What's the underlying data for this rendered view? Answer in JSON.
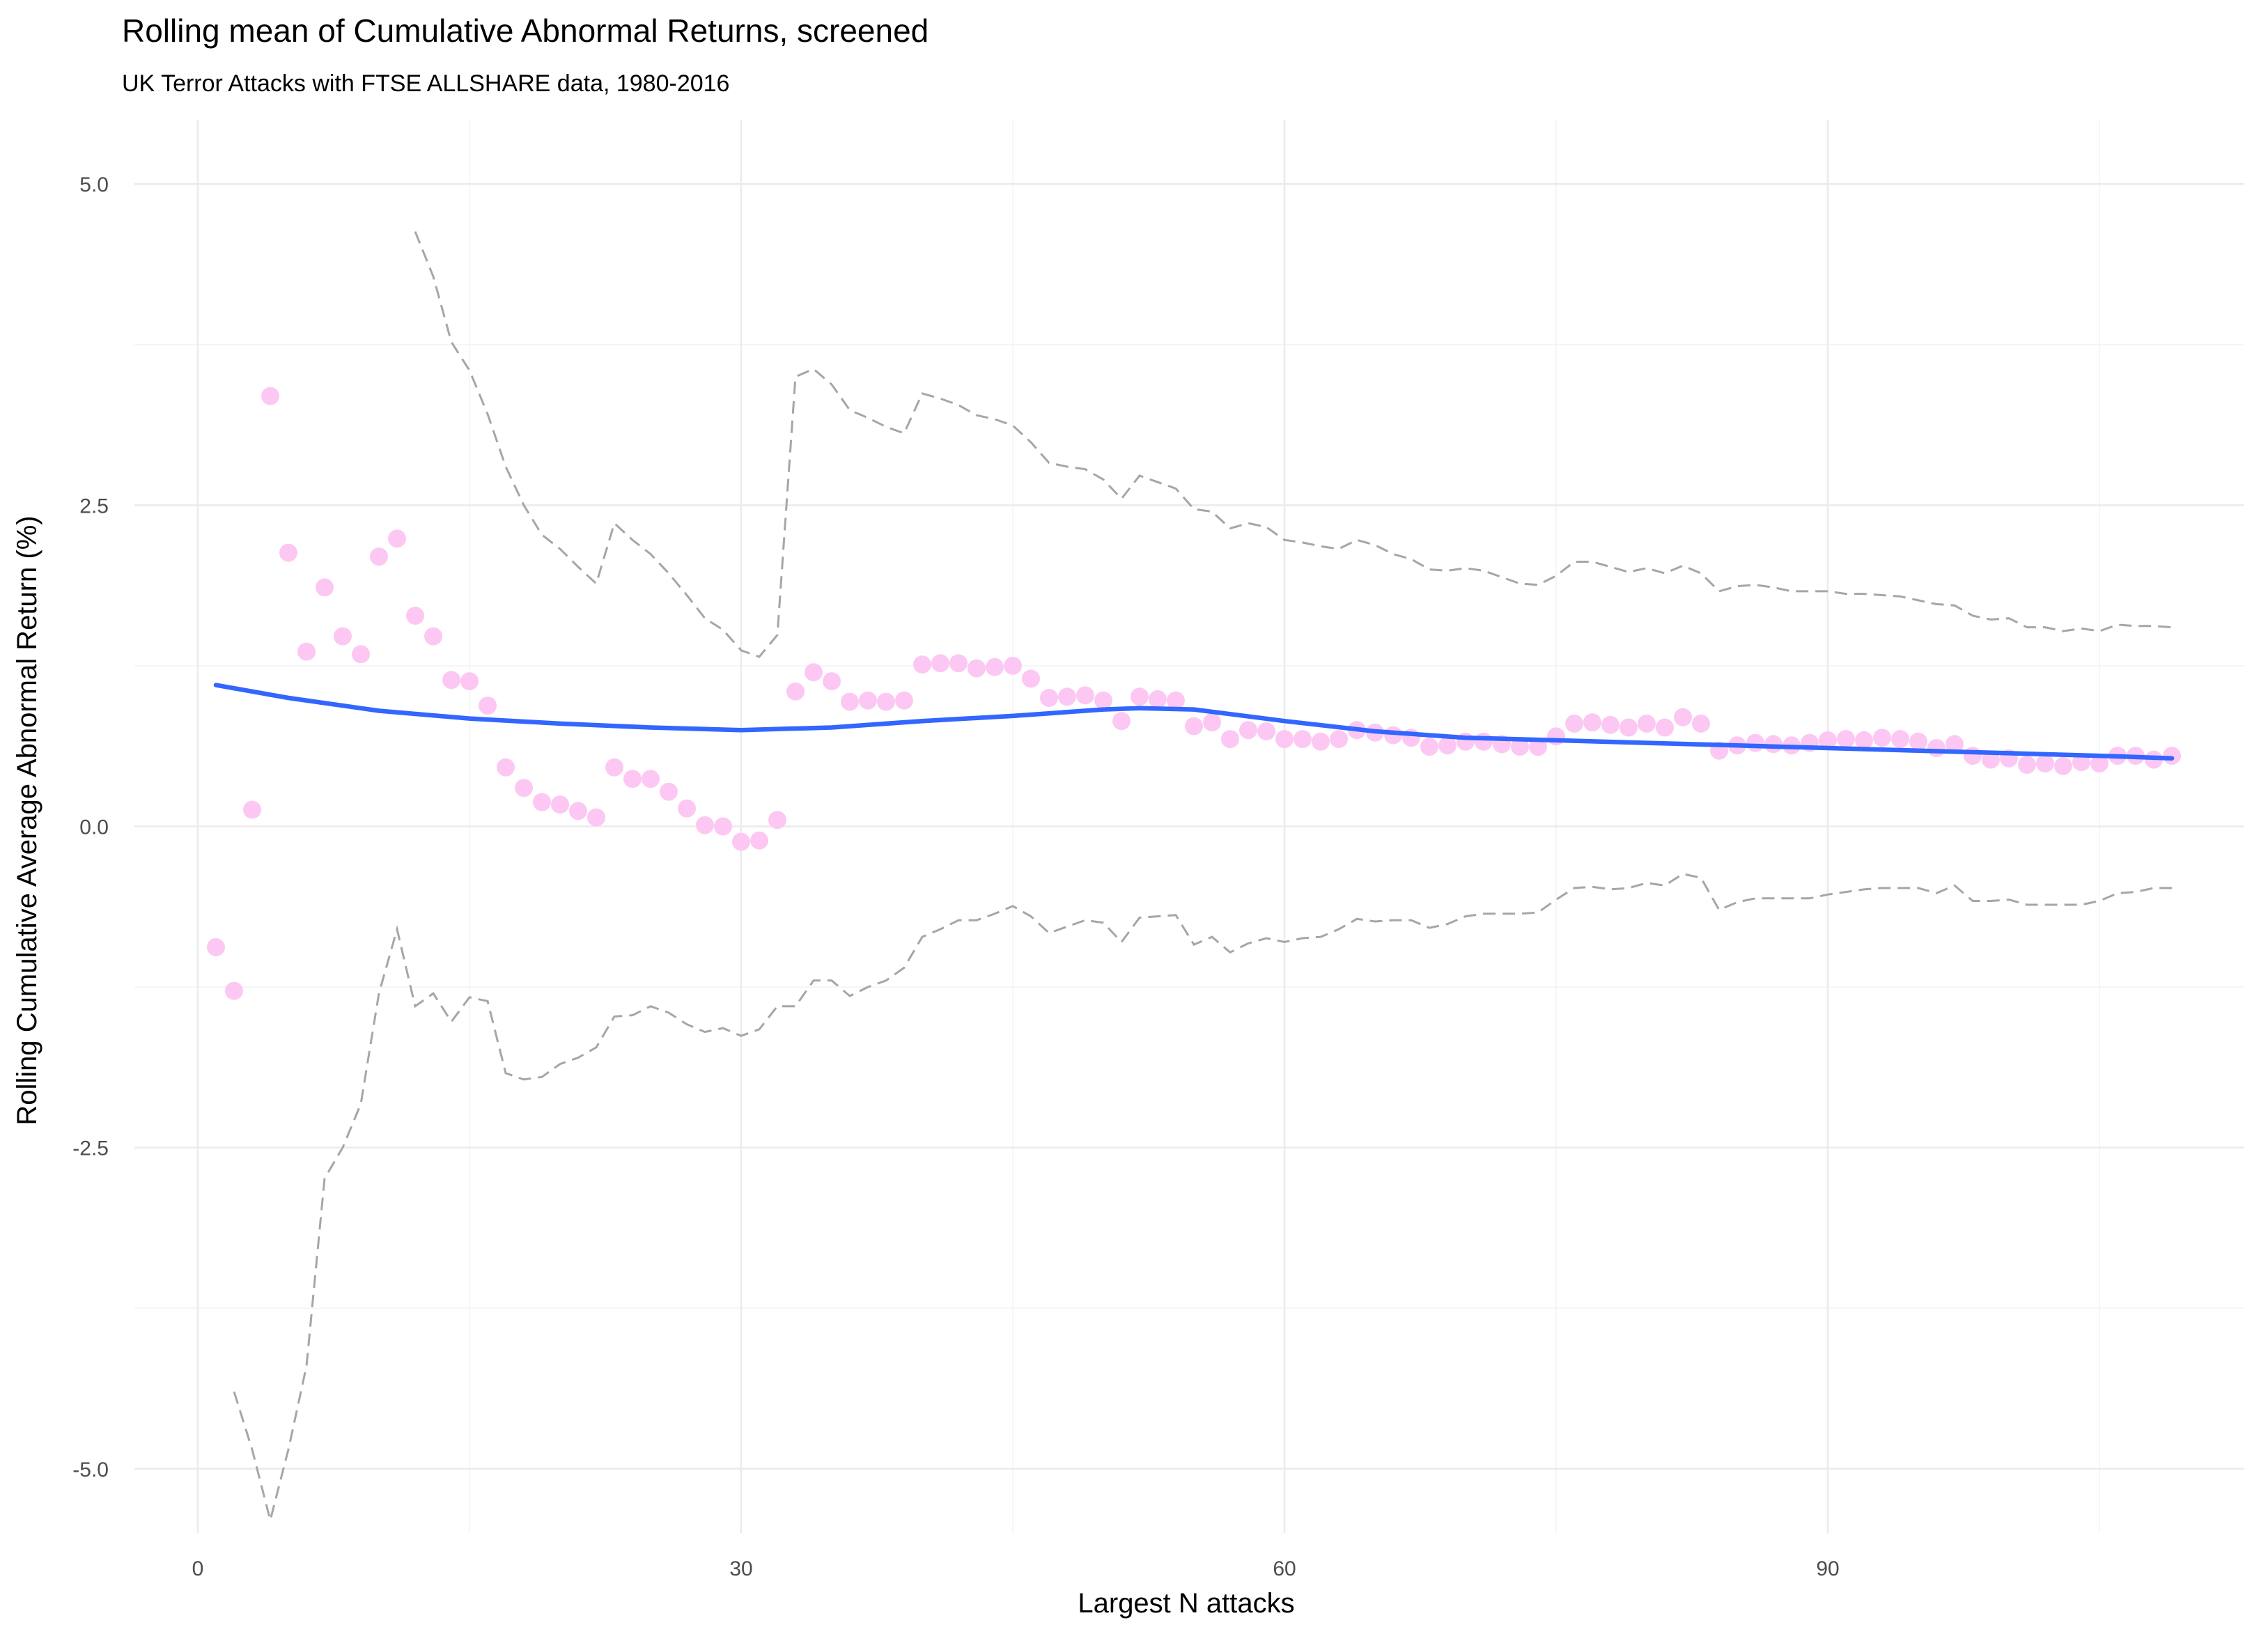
{
  "chart_data": {
    "type": "scatter",
    "title": "Rolling mean of Cumulative Abnormal Returns, screened",
    "subtitle": "UK Terror Attacks with FTSE ALLSHARE data, 1980-2016",
    "xlabel": "Largest N attacks",
    "ylabel": "Rolling Cumulative Average Abnormal Return (%)",
    "xlim": [
      -3.5,
      113
    ],
    "ylim": [
      -5.5,
      5.5
    ],
    "x_ticks": [
      0,
      30,
      60,
      90
    ],
    "x_tick_labels": [
      "0",
      "30",
      "60",
      "90"
    ],
    "y_ticks": [
      5.0,
      2.5,
      0.0,
      -2.5,
      -5.0
    ],
    "y_tick_labels": [
      "5.0",
      "2.5",
      "0.0",
      "-2.5",
      "-5.0"
    ],
    "grid": true,
    "legend": "none",
    "colors": {
      "points": "#fcc8f3",
      "smooth": "#3366ff",
      "bounds": "#a6a6a6"
    },
    "series": [
      {
        "kind": "points",
        "x": [
          1,
          2,
          3,
          4,
          5,
          6,
          7,
          8,
          9,
          10,
          11,
          12,
          13,
          14,
          15,
          16,
          17,
          18,
          19,
          20,
          21,
          22,
          23,
          24,
          25,
          26,
          27,
          28,
          29,
          30,
          31,
          32,
          33,
          34,
          35,
          36,
          37,
          38,
          39,
          40,
          41,
          42,
          43,
          44,
          45,
          46,
          47,
          48,
          49,
          50,
          51,
          52,
          53,
          54,
          55,
          56,
          57,
          58,
          59,
          60,
          61,
          62,
          63,
          64,
          65,
          66,
          67,
          68,
          69,
          70,
          71,
          72,
          73,
          74,
          75,
          76,
          77,
          78,
          79,
          80,
          81,
          82,
          83,
          84,
          85,
          86,
          87,
          88,
          89,
          90,
          91,
          92,
          93,
          94,
          95,
          96,
          97,
          98,
          99,
          100,
          101,
          102,
          103,
          104,
          105,
          106,
          107,
          108,
          109
        ],
        "y": [
          -0.94,
          -1.28,
          0.13,
          3.35,
          2.13,
          1.36,
          1.86,
          1.48,
          1.34,
          2.1,
          2.24,
          1.64,
          1.48,
          1.14,
          1.13,
          0.94,
          0.46,
          0.3,
          0.19,
          0.17,
          0.12,
          0.07,
          0.46,
          0.37,
          0.37,
          0.27,
          0.14,
          0.01,
          0.0,
          -0.12,
          -0.11,
          0.05,
          1.05,
          1.2,
          1.13,
          0.97,
          0.98,
          0.97,
          0.98,
          1.26,
          1.27,
          1.27,
          1.23,
          1.24,
          1.25,
          1.15,
          1.0,
          1.01,
          1.02,
          0.98,
          0.82,
          1.01,
          0.99,
          0.98,
          0.78,
          0.81,
          0.68,
          0.75,
          0.74,
          0.68,
          0.68,
          0.66,
          0.68,
          0.75,
          0.73,
          0.71,
          0.69,
          0.62,
          0.63,
          0.66,
          0.66,
          0.64,
          0.62,
          0.62,
          0.7,
          0.8,
          0.81,
          0.79,
          0.77,
          0.8,
          0.77,
          0.85,
          0.8,
          0.59,
          0.63,
          0.65,
          0.64,
          0.63,
          0.65,
          0.67,
          0.68,
          0.67,
          0.69,
          0.68,
          0.66,
          0.61,
          0.64,
          0.55,
          0.52,
          0.53,
          0.48,
          0.49,
          0.47,
          0.5,
          0.49,
          0.55,
          0.55,
          0.52,
          0.55
        ]
      },
      {
        "kind": "smooth",
        "x": [
          1,
          5,
          10,
          15,
          20,
          25,
          30,
          35,
          40,
          45,
          50,
          52,
          55,
          60,
          65,
          70,
          75,
          80,
          85,
          90,
          95,
          100,
          105,
          109
        ],
        "y": [
          1.1,
          1.0,
          0.9,
          0.84,
          0.8,
          0.77,
          0.75,
          0.77,
          0.82,
          0.86,
          0.91,
          0.92,
          0.91,
          0.82,
          0.74,
          0.69,
          0.67,
          0.65,
          0.63,
          0.61,
          0.59,
          0.57,
          0.55,
          0.53
        ]
      },
      {
        "kind": "upper-bound",
        "x": [
          12,
          13,
          14,
          15,
          16,
          17,
          18,
          19,
          20,
          21,
          22,
          23,
          24,
          25,
          26,
          27,
          28,
          29,
          30,
          31,
          32,
          33,
          34,
          35,
          36,
          37,
          38,
          39,
          40,
          41,
          42,
          43,
          44,
          45,
          46,
          47,
          48,
          49,
          50,
          51,
          52,
          53,
          54,
          55,
          56,
          57,
          58,
          59,
          60,
          61,
          62,
          63,
          64,
          65,
          66,
          67,
          68,
          69,
          70,
          71,
          72,
          73,
          74,
          75,
          76,
          77,
          78,
          79,
          80,
          81,
          82,
          83,
          84,
          85,
          86,
          87,
          88,
          89,
          90,
          91,
          92,
          93,
          94,
          95,
          96,
          97,
          98,
          99,
          100,
          101,
          102,
          103,
          104,
          105,
          106,
          107,
          108,
          109
        ],
        "y": [
          4.63,
          4.28,
          3.77,
          3.55,
          3.21,
          2.8,
          2.5,
          2.27,
          2.16,
          2.02,
          1.89,
          2.36,
          2.23,
          2.12,
          1.97,
          1.8,
          1.62,
          1.53,
          1.37,
          1.32,
          1.49,
          3.5,
          3.56,
          3.44,
          3.24,
          3.18,
          3.11,
          3.06,
          3.37,
          3.33,
          3.28,
          3.2,
          3.17,
          3.12,
          2.99,
          2.83,
          2.8,
          2.78,
          2.7,
          2.55,
          2.73,
          2.68,
          2.63,
          2.47,
          2.45,
          2.32,
          2.36,
          2.33,
          2.23,
          2.21,
          2.18,
          2.16,
          2.23,
          2.19,
          2.12,
          2.08,
          2.0,
          1.99,
          2.01,
          1.99,
          1.94,
          1.89,
          1.88,
          1.95,
          2.06,
          2.06,
          2.02,
          1.98,
          2.01,
          1.97,
          2.03,
          1.97,
          1.83,
          1.87,
          1.88,
          1.86,
          1.83,
          1.83,
          1.83,
          1.81,
          1.81,
          1.8,
          1.79,
          1.76,
          1.73,
          1.72,
          1.64,
          1.61,
          1.62,
          1.55,
          1.55,
          1.52,
          1.54,
          1.52,
          1.57,
          1.56,
          1.56,
          1.55
        ]
      },
      {
        "kind": "lower-bound",
        "x": [
          2,
          3,
          4,
          5,
          6,
          7,
          8,
          9,
          10,
          11,
          12,
          13,
          14,
          15,
          16,
          17,
          18,
          19,
          20,
          21,
          22,
          23,
          24,
          25,
          26,
          27,
          28,
          29,
          30,
          31,
          32,
          33,
          34,
          35,
          36,
          37,
          38,
          39,
          40,
          41,
          42,
          43,
          44,
          45,
          46,
          47,
          48,
          49,
          50,
          51,
          52,
          53,
          54,
          55,
          56,
          57,
          58,
          59,
          60,
          61,
          62,
          63,
          64,
          65,
          66,
          67,
          68,
          69,
          70,
          71,
          72,
          73,
          74,
          75,
          76,
          77,
          78,
          79,
          80,
          81,
          82,
          83,
          84,
          85,
          86,
          87,
          88,
          89,
          90,
          91,
          92,
          93,
          94,
          95,
          96,
          97,
          98,
          99,
          100,
          101,
          102,
          103,
          104,
          105,
          106,
          107,
          108,
          109
        ],
        "y": [
          -4.4,
          -4.85,
          -5.4,
          -4.85,
          -4.2,
          -2.74,
          -2.5,
          -2.16,
          -1.3,
          -0.8,
          -1.4,
          -1.3,
          -1.52,
          -1.33,
          -1.36,
          -1.92,
          -1.97,
          -1.95,
          -1.85,
          -1.8,
          -1.72,
          -1.48,
          -1.47,
          -1.4,
          -1.45,
          -1.54,
          -1.6,
          -1.57,
          -1.63,
          -1.58,
          -1.4,
          -1.4,
          -1.2,
          -1.2,
          -1.32,
          -1.25,
          -1.2,
          -1.1,
          -0.86,
          -0.8,
          -0.73,
          -0.73,
          -0.68,
          -0.62,
          -0.7,
          -0.83,
          -0.78,
          -0.73,
          -0.75,
          -0.9,
          -0.71,
          -0.7,
          -0.69,
          -0.92,
          -0.86,
          -0.98,
          -0.91,
          -0.87,
          -0.9,
          -0.87,
          -0.86,
          -0.8,
          -0.72,
          -0.74,
          -0.73,
          -0.73,
          -0.79,
          -0.76,
          -0.7,
          -0.68,
          -0.68,
          -0.68,
          -0.67,
          -0.57,
          -0.48,
          -0.47,
          -0.49,
          -0.48,
          -0.44,
          -0.46,
          -0.37,
          -0.4,
          -0.65,
          -0.59,
          -0.56,
          -0.56,
          -0.56,
          -0.56,
          -0.53,
          -0.51,
          -0.49,
          -0.48,
          -0.48,
          -0.48,
          -0.52,
          -0.46,
          -0.58,
          -0.58,
          -0.57,
          -0.61,
          -0.61,
          -0.61,
          -0.61,
          -0.58,
          -0.52,
          -0.51,
          -0.48,
          -0.48
        ]
      }
    ]
  }
}
